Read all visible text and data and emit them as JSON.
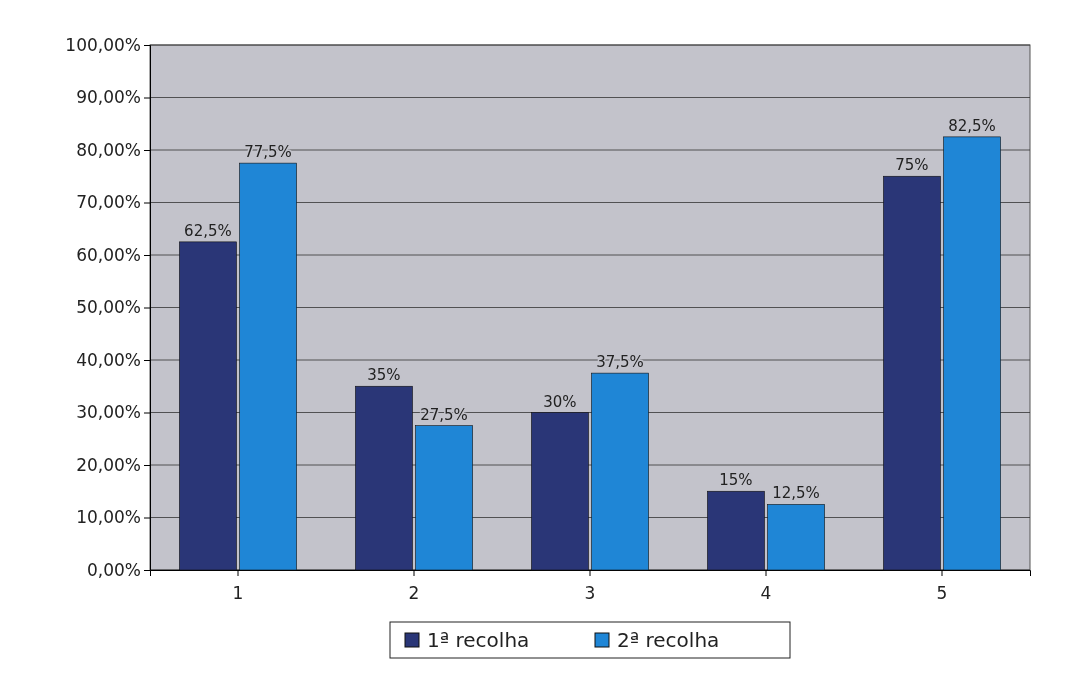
{
  "chart_data": {
    "type": "bar",
    "categories": [
      "1",
      "2",
      "3",
      "4",
      "5"
    ],
    "series": [
      {
        "name": "1ª recolha",
        "color": "#2a3677",
        "values": [
          62.5,
          35,
          30,
          15,
          75
        ],
        "value_labels": [
          "62,5%",
          "35%",
          "30%",
          "15%",
          "75%"
        ]
      },
      {
        "name": "2ª recolha",
        "color": "#1f86d6",
        "values": [
          77.5,
          27.5,
          37.5,
          12.5,
          82.5
        ],
        "value_labels": [
          "77,5%",
          "27,5%",
          "37,5%",
          "12,5%",
          "82,5%"
        ]
      }
    ],
    "ylim": [
      0,
      100
    ],
    "yticks": [
      {
        "value": 0,
        "label": "0,00%"
      },
      {
        "value": 10,
        "label": "10,00%"
      },
      {
        "value": 20,
        "label": "20,00%"
      },
      {
        "value": 30,
        "label": "30,00%"
      },
      {
        "value": 40,
        "label": "40,00%"
      },
      {
        "value": 50,
        "label": "50,00%"
      },
      {
        "value": 60,
        "label": "60,00%"
      },
      {
        "value": 70,
        "label": "70,00%"
      },
      {
        "value": 80,
        "label": "80,00%"
      },
      {
        "value": 90,
        "label": "90,00%"
      },
      {
        "value": 100,
        "label": "100,00%"
      }
    ],
    "grid": true,
    "legend": "bottom"
  }
}
